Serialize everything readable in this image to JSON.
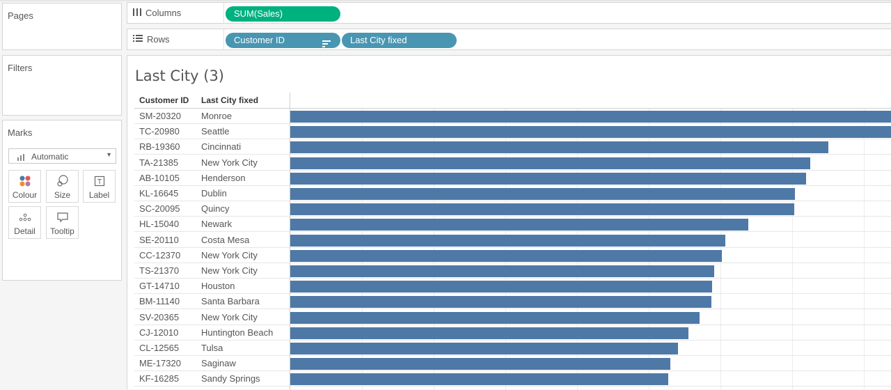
{
  "shelves": {
    "columns": {
      "label": "Columns",
      "pills": [
        "SUM(Sales)"
      ]
    },
    "rows": {
      "label": "Rows",
      "pills": [
        "Customer ID",
        "Last City fixed"
      ]
    }
  },
  "cards": {
    "pages": "Pages",
    "filters": "Filters",
    "marks": {
      "title": "Marks",
      "type": "Automatic",
      "buttons": [
        "Colour",
        "Size",
        "Label",
        "Detail",
        "Tooltip"
      ]
    }
  },
  "view": {
    "title": "Last City (3)",
    "headers": [
      "Customer ID",
      "Last City fixed"
    ]
  },
  "chart_data": {
    "type": "bar",
    "orientation": "horizontal",
    "measure": "SUM(Sales)",
    "xlabel": "",
    "ylabel": "",
    "rows": [
      {
        "customer_id": "SM-20320",
        "city": "Monroe",
        "value": 1.0
      },
      {
        "customer_id": "TC-20980",
        "city": "Seattle",
        "value": 1.0
      },
      {
        "customer_id": "RB-19360",
        "city": "Cincinnati",
        "value": 0.895
      },
      {
        "customer_id": "TA-21385",
        "city": "New York City",
        "value": 0.865
      },
      {
        "customer_id": "AB-10105",
        "city": "Henderson",
        "value": 0.858
      },
      {
        "customer_id": "KL-16645",
        "city": "Dublin",
        "value": 0.839
      },
      {
        "customer_id": "SC-20095",
        "city": "Quincy",
        "value": 0.838
      },
      {
        "customer_id": "HL-15040",
        "city": "Newark",
        "value": 0.762
      },
      {
        "customer_id": "SE-20110",
        "city": "Costa Mesa",
        "value": 0.723
      },
      {
        "customer_id": "CC-12370",
        "city": "New York City",
        "value": 0.718
      },
      {
        "customer_id": "TS-21370",
        "city": "New York City",
        "value": 0.705
      },
      {
        "customer_id": "GT-14710",
        "city": "Houston",
        "value": 0.701
      },
      {
        "customer_id": "BM-11140",
        "city": "Santa Barbara",
        "value": 0.7
      },
      {
        "customer_id": "SV-20365",
        "city": "New York City",
        "value": 0.68
      },
      {
        "customer_id": "CJ-12010",
        "city": "Huntington Beach",
        "value": 0.662
      },
      {
        "customer_id": "CL-12565",
        "city": "Tulsa",
        "value": 0.645
      },
      {
        "customer_id": "ME-17320",
        "city": "Saginaw",
        "value": 0.632
      },
      {
        "customer_id": "KF-16285",
        "city": "Sandy Springs",
        "value": 0.628
      }
    ],
    "bar_color": "#4e79a7",
    "grid": true
  },
  "colors": {
    "measure_pill": "#00b180",
    "dimension_pill": "#4996b2",
    "bar": "#4e79a7"
  }
}
